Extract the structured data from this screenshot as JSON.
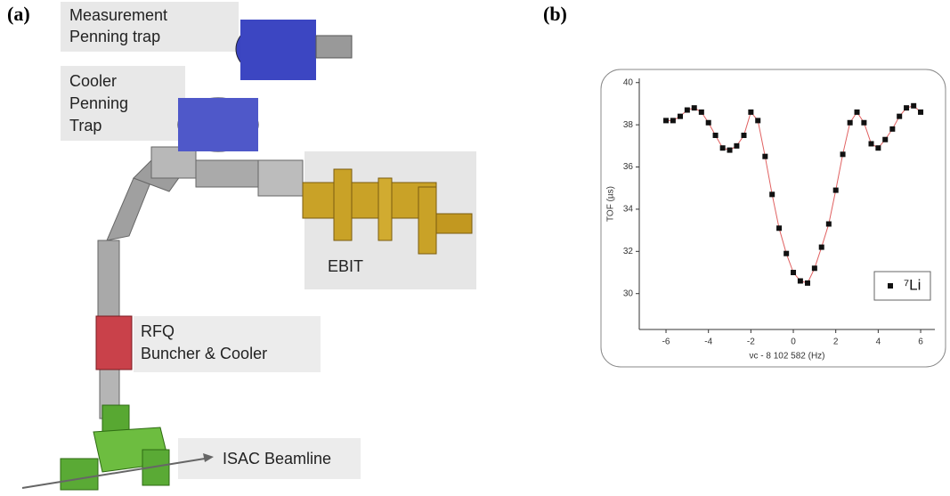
{
  "panels": {
    "a": {
      "tag": "(a)",
      "labels": [
        {
          "lines": [
            "Measurement",
            "Penning trap"
          ]
        },
        {
          "lines": [
            "Cooler",
            "Penning",
            "Trap"
          ]
        },
        {
          "lines": [
            "EBIT"
          ]
        },
        {
          "lines": [
            "RFQ",
            "Buncher & Cooler"
          ]
        },
        {
          "lines": [
            "ISAC Beamline"
          ]
        }
      ]
    },
    "b": {
      "tag": "(b)"
    }
  },
  "chart_data": {
    "type": "scatter",
    "x_label": "νc - 8 102 582 (Hz)",
    "y_label": "TOF (µs)",
    "xlim": [
      -7.26,
      6.67
    ],
    "ylim": [
      28.3,
      40.2
    ],
    "xticks": [
      -6,
      -4,
      -2,
      0,
      2,
      4,
      6
    ],
    "yticks": [
      30,
      32,
      34,
      36,
      38,
      40
    ],
    "legend": "lower right",
    "fit_color": "#e06060",
    "series": [
      {
        "name": "⁷Li",
        "color": "#111111",
        "x": [
          -6,
          -5.67,
          -5.33,
          -5,
          -4.67,
          -4.33,
          -4,
          -3.67,
          -3.33,
          -3,
          -2.67,
          -2.33,
          -2,
          -1.67,
          -1.33,
          -1,
          -0.67,
          -0.33,
          0,
          0.33,
          0.67,
          1,
          1.33,
          1.67,
          2,
          2.33,
          2.67,
          3,
          3.33,
          3.67,
          4,
          4.33,
          4.67,
          5,
          5.33,
          5.67,
          6
        ],
        "values": [
          38.2,
          38.2,
          38.4,
          38.7,
          38.8,
          38.6,
          38.1,
          37.5,
          36.9,
          36.8,
          37.0,
          37.5,
          38.6,
          38.2,
          36.5,
          34.7,
          33.1,
          31.9,
          31.0,
          30.6,
          30.5,
          31.2,
          32.2,
          33.3,
          34.9,
          36.6,
          38.1,
          38.6,
          38.1,
          37.1,
          36.9,
          37.3,
          37.8,
          38.4,
          38.8,
          38.9,
          38.6
        ]
      }
    ]
  }
}
